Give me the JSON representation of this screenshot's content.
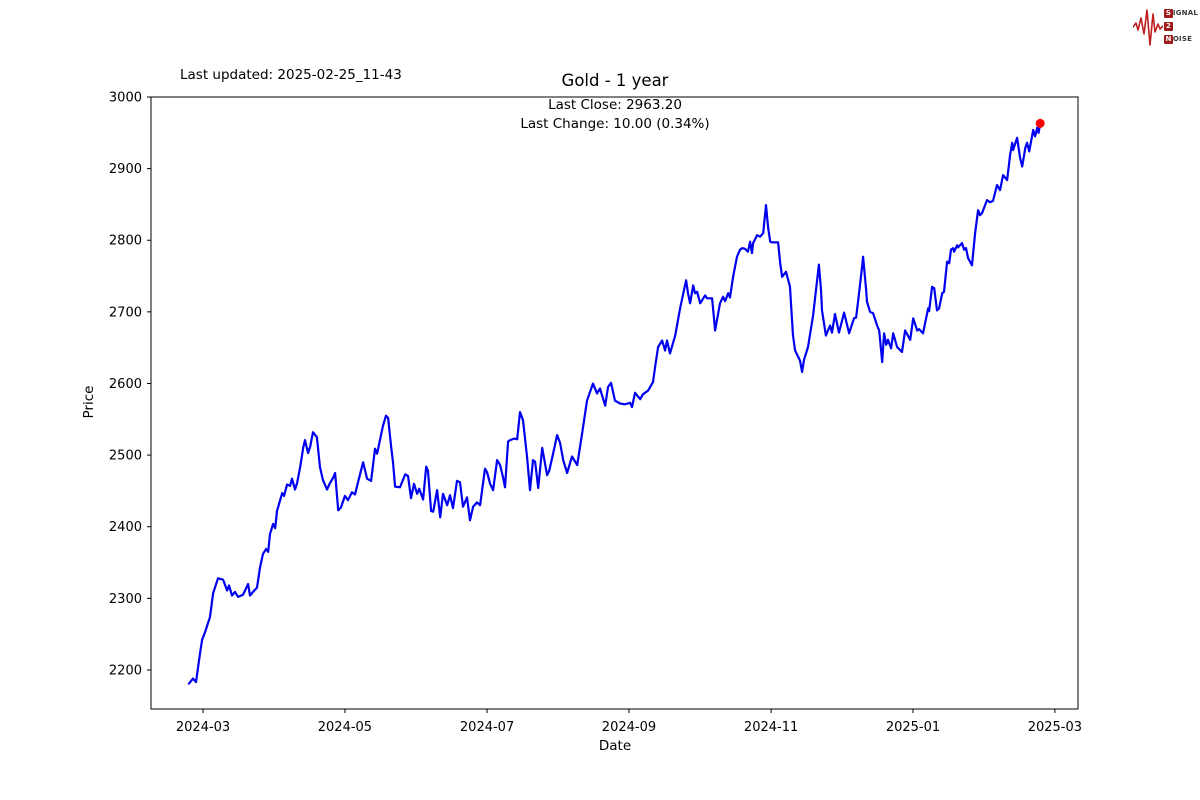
{
  "header": {
    "last_updated": "Last updated: 2025-02-25_11-43"
  },
  "logo": {
    "color_accent": "#c01f1f",
    "box_color": "#9e1b1b",
    "row1_initial": "S",
    "row1_rest": "IGNAL",
    "row2_initial": "2",
    "row2_rest": "",
    "row3_initial": "N",
    "row3_rest": "OISE"
  },
  "chart_data": {
    "type": "line",
    "title": "Gold - 1 year",
    "annotation_line1": "Last Close: 2963.20",
    "annotation_line2": "Last Change: 10.00 (0.34%)",
    "last_close": 2963.2,
    "last_change": 10.0,
    "last_change_pct": 0.34,
    "xlabel": "Date",
    "ylabel": "Price",
    "grid": false,
    "border_color": "#000000",
    "x_axis": {
      "unit": "days since 2024-02-24",
      "min": -16.3,
      "max": 380.9,
      "ticks": [
        {
          "d": 6,
          "label": "2024-03"
        },
        {
          "d": 66.8,
          "label": "2024-05"
        },
        {
          "d": 127.7,
          "label": "2024-07"
        },
        {
          "d": 188.5,
          "label": "2024-09"
        },
        {
          "d": 249.4,
          "label": "2024-11"
        },
        {
          "d": 310.2,
          "label": "2025-01"
        },
        {
          "d": 371,
          "label": "2025-03"
        }
      ]
    },
    "y_axis": {
      "min": 2145.5,
      "max": 3000,
      "ticks": [
        2200,
        2300,
        2400,
        2500,
        2600,
        2700,
        2800,
        2900,
        3000
      ]
    },
    "series": [
      {
        "name": "Gold price",
        "color": "#0000f0",
        "line_width": 2.2,
        "points": [
          [
            0,
            2181
          ],
          [
            1.7,
            2188
          ],
          [
            3,
            2183
          ],
          [
            4.7,
            2223
          ],
          [
            5.6,
            2242
          ],
          [
            6.9,
            2253
          ],
          [
            9,
            2274
          ],
          [
            10.3,
            2307
          ],
          [
            12.4,
            2328
          ],
          [
            14.6,
            2326
          ],
          [
            16.3,
            2311
          ],
          [
            17.1,
            2318
          ],
          [
            18.4,
            2304
          ],
          [
            19.7,
            2309
          ],
          [
            21,
            2302
          ],
          [
            23.1,
            2305
          ],
          [
            25.3,
            2320
          ],
          [
            26.1,
            2304
          ],
          [
            27.4,
            2309
          ],
          [
            29.1,
            2315
          ],
          [
            30.4,
            2343
          ],
          [
            31.7,
            2362
          ],
          [
            33,
            2369
          ],
          [
            33.9,
            2365
          ],
          [
            34.7,
            2390
          ],
          [
            36,
            2404
          ],
          [
            36.9,
            2398
          ],
          [
            37.7,
            2422
          ],
          [
            38.6,
            2432
          ],
          [
            39.9,
            2447
          ],
          [
            40.7,
            2443
          ],
          [
            42,
            2459
          ],
          [
            43.3,
            2457
          ],
          [
            44.1,
            2467
          ],
          [
            45.4,
            2452
          ],
          [
            46.3,
            2461
          ],
          [
            47.6,
            2483
          ],
          [
            48.9,
            2510
          ],
          [
            49.7,
            2521
          ],
          [
            51,
            2503
          ],
          [
            51.9,
            2512
          ],
          [
            53.1,
            2532
          ],
          [
            54.8,
            2525
          ],
          [
            56.1,
            2483
          ],
          [
            57.4,
            2465
          ],
          [
            59.1,
            2452
          ],
          [
            60.4,
            2461
          ],
          [
            61.7,
            2468
          ],
          [
            62.6,
            2475
          ],
          [
            63.9,
            2423
          ],
          [
            65.1,
            2427
          ],
          [
            66.8,
            2443
          ],
          [
            68.1,
            2437
          ],
          [
            69.8,
            2448
          ],
          [
            71.1,
            2445
          ],
          [
            72.4,
            2462
          ],
          [
            74.6,
            2490
          ],
          [
            76.3,
            2467
          ],
          [
            78,
            2464
          ],
          [
            79.7,
            2509
          ],
          [
            80.6,
            2502
          ],
          [
            83.1,
            2541
          ],
          [
            84.4,
            2555
          ],
          [
            85.3,
            2552
          ],
          [
            86.6,
            2511
          ],
          [
            87.4,
            2490
          ],
          [
            88.3,
            2456
          ],
          [
            90.4,
            2455
          ],
          [
            92.6,
            2473
          ],
          [
            93.8,
            2471
          ],
          [
            95.1,
            2440
          ],
          [
            96.4,
            2460
          ],
          [
            97.7,
            2446
          ],
          [
            98.6,
            2453
          ],
          [
            100.3,
            2438
          ],
          [
            101.6,
            2484
          ],
          [
            102.4,
            2478
          ],
          [
            103.7,
            2422
          ],
          [
            104.6,
            2421
          ],
          [
            106.3,
            2451
          ],
          [
            107.6,
            2413
          ],
          [
            108.8,
            2446
          ],
          [
            110.6,
            2430
          ],
          [
            111.8,
            2444
          ],
          [
            113.1,
            2426
          ],
          [
            114.8,
            2464
          ],
          [
            116.1,
            2462
          ],
          [
            117.4,
            2428
          ],
          [
            119.1,
            2441
          ],
          [
            120.4,
            2409
          ],
          [
            121.7,
            2428
          ],
          [
            123.4,
            2434
          ],
          [
            124.7,
            2430
          ],
          [
            126.8,
            2481
          ],
          [
            127.7,
            2476
          ],
          [
            129,
            2460
          ],
          [
            130.3,
            2451
          ],
          [
            132,
            2493
          ],
          [
            133.3,
            2486
          ],
          [
            134.6,
            2468
          ],
          [
            135.4,
            2455
          ],
          [
            136.7,
            2519
          ],
          [
            137.6,
            2521
          ],
          [
            139.3,
            2523
          ],
          [
            140.6,
            2522
          ],
          [
            141.8,
            2560
          ],
          [
            143.1,
            2549
          ],
          [
            144.8,
            2498
          ],
          [
            146.1,
            2451
          ],
          [
            147.4,
            2493
          ],
          [
            148.3,
            2491
          ],
          [
            149.6,
            2454
          ],
          [
            151.3,
            2510
          ],
          [
            153.4,
            2472
          ],
          [
            154.3,
            2478
          ],
          [
            156,
            2502
          ],
          [
            157.7,
            2528
          ],
          [
            159,
            2517
          ],
          [
            160.3,
            2493
          ],
          [
            162,
            2475
          ],
          [
            164.1,
            2498
          ],
          [
            166.3,
            2486
          ],
          [
            168.4,
            2530
          ],
          [
            170.5,
            2576
          ],
          [
            171.8,
            2588
          ],
          [
            173.1,
            2600
          ],
          [
            174.8,
            2586
          ],
          [
            176.1,
            2593
          ],
          [
            178.3,
            2569
          ],
          [
            179.5,
            2595
          ],
          [
            180.8,
            2601
          ],
          [
            182.5,
            2576
          ],
          [
            184.7,
            2572
          ],
          [
            186.8,
            2571
          ],
          [
            189,
            2573
          ],
          [
            189.8,
            2567
          ],
          [
            191.1,
            2587
          ],
          [
            193.3,
            2578
          ],
          [
            194.5,
            2585
          ],
          [
            196.7,
            2590
          ],
          [
            198.8,
            2602
          ],
          [
            199.7,
            2623
          ],
          [
            201,
            2651
          ],
          [
            202.7,
            2660
          ],
          [
            204,
            2646
          ],
          [
            204.8,
            2660
          ],
          [
            206.1,
            2642
          ],
          [
            208.3,
            2667
          ],
          [
            210.4,
            2705
          ],
          [
            213,
            2744
          ],
          [
            213.8,
            2726
          ],
          [
            214.7,
            2712
          ],
          [
            216,
            2737
          ],
          [
            216.8,
            2726
          ],
          [
            217.7,
            2728
          ],
          [
            219,
            2712
          ],
          [
            221.1,
            2723
          ],
          [
            222,
            2719
          ],
          [
            224.1,
            2719
          ],
          [
            225.4,
            2674
          ],
          [
            227.5,
            2712
          ],
          [
            228.8,
            2721
          ],
          [
            229.7,
            2715
          ],
          [
            231,
            2726
          ],
          [
            231.8,
            2720
          ],
          [
            233.1,
            2749
          ],
          [
            234.8,
            2777
          ],
          [
            236.1,
            2787
          ],
          [
            237,
            2789
          ],
          [
            238.2,
            2788
          ],
          [
            239.5,
            2784
          ],
          [
            240.4,
            2798
          ],
          [
            241.2,
            2782
          ],
          [
            241.7,
            2796
          ],
          [
            243.4,
            2807
          ],
          [
            244.7,
            2805
          ],
          [
            246,
            2810
          ],
          [
            247.2,
            2849
          ],
          [
            248.1,
            2818
          ],
          [
            249,
            2798
          ],
          [
            249.8,
            2797
          ],
          [
            252.4,
            2797
          ],
          [
            253.3,
            2768
          ],
          [
            254.1,
            2749
          ],
          [
            255.8,
            2756
          ],
          [
            256.7,
            2745
          ],
          [
            257.5,
            2735
          ],
          [
            258,
            2707
          ],
          [
            258.8,
            2667
          ],
          [
            259.7,
            2646
          ],
          [
            261.8,
            2632
          ],
          [
            262.7,
            2616
          ],
          [
            263.5,
            2633
          ],
          [
            265.2,
            2651
          ],
          [
            267.4,
            2695
          ],
          [
            269.9,
            2766
          ],
          [
            270.8,
            2731
          ],
          [
            271.2,
            2702
          ],
          [
            272.9,
            2667
          ],
          [
            274.7,
            2681
          ],
          [
            275.5,
            2671
          ],
          [
            276.8,
            2697
          ],
          [
            278.5,
            2671
          ],
          [
            280.7,
            2699
          ],
          [
            282.8,
            2670
          ],
          [
            284.9,
            2691
          ],
          [
            285.8,
            2692
          ],
          [
            286.7,
            2716
          ],
          [
            288.4,
            2763
          ],
          [
            288.8,
            2777
          ],
          [
            290.1,
            2731
          ],
          [
            290.5,
            2714
          ],
          [
            291.8,
            2700
          ],
          [
            293.1,
            2698
          ],
          [
            294.8,
            2681
          ],
          [
            295.7,
            2674
          ],
          [
            297,
            2630
          ],
          [
            297.8,
            2670
          ],
          [
            298.7,
            2654
          ],
          [
            299.5,
            2661
          ],
          [
            300.8,
            2649
          ],
          [
            301.7,
            2670
          ],
          [
            303.4,
            2651
          ],
          [
            304.3,
            2648
          ],
          [
            305.5,
            2644
          ],
          [
            306.8,
            2674
          ],
          [
            309,
            2661
          ],
          [
            310.3,
            2691
          ],
          [
            312,
            2674
          ],
          [
            312.8,
            2676
          ],
          [
            314.5,
            2670
          ],
          [
            315.8,
            2691
          ],
          [
            316.7,
            2705
          ],
          [
            317.1,
            2701
          ],
          [
            318.4,
            2735
          ],
          [
            319.3,
            2733
          ],
          [
            320.5,
            2702
          ],
          [
            321.4,
            2705
          ],
          [
            322.7,
            2726
          ],
          [
            323.5,
            2728
          ],
          [
            324.8,
            2770
          ],
          [
            325.7,
            2768
          ],
          [
            326.5,
            2787
          ],
          [
            327.4,
            2789
          ],
          [
            327.8,
            2784
          ],
          [
            329.1,
            2793
          ],
          [
            329.5,
            2790
          ],
          [
            331.2,
            2796
          ],
          [
            332.1,
            2787
          ],
          [
            332.9,
            2789
          ],
          [
            333.8,
            2775
          ],
          [
            335.5,
            2765
          ],
          [
            336.8,
            2810
          ],
          [
            338.1,
            2842
          ],
          [
            338.9,
            2835
          ],
          [
            339.8,
            2838
          ],
          [
            341.9,
            2856
          ],
          [
            343.2,
            2853
          ],
          [
            344.5,
            2855
          ],
          [
            346.2,
            2877
          ],
          [
            347.5,
            2870
          ],
          [
            348.8,
            2891
          ],
          [
            350.5,
            2884
          ],
          [
            351.8,
            2919
          ],
          [
            352.7,
            2936
          ],
          [
            353.1,
            2926
          ],
          [
            354.8,
            2943
          ],
          [
            356.1,
            2915
          ],
          [
            357,
            2903
          ],
          [
            358.3,
            2929
          ],
          [
            359.1,
            2936
          ],
          [
            360,
            2924
          ],
          [
            361.7,
            2954
          ],
          [
            362.5,
            2945
          ],
          [
            363.4,
            2957
          ],
          [
            364,
            2950
          ],
          [
            364.7,
            2963.2
          ]
        ]
      }
    ],
    "last_point_marker": {
      "color": "#ff0000",
      "radius": 4.5,
      "d": 364.7,
      "price": 2963.2
    }
  }
}
